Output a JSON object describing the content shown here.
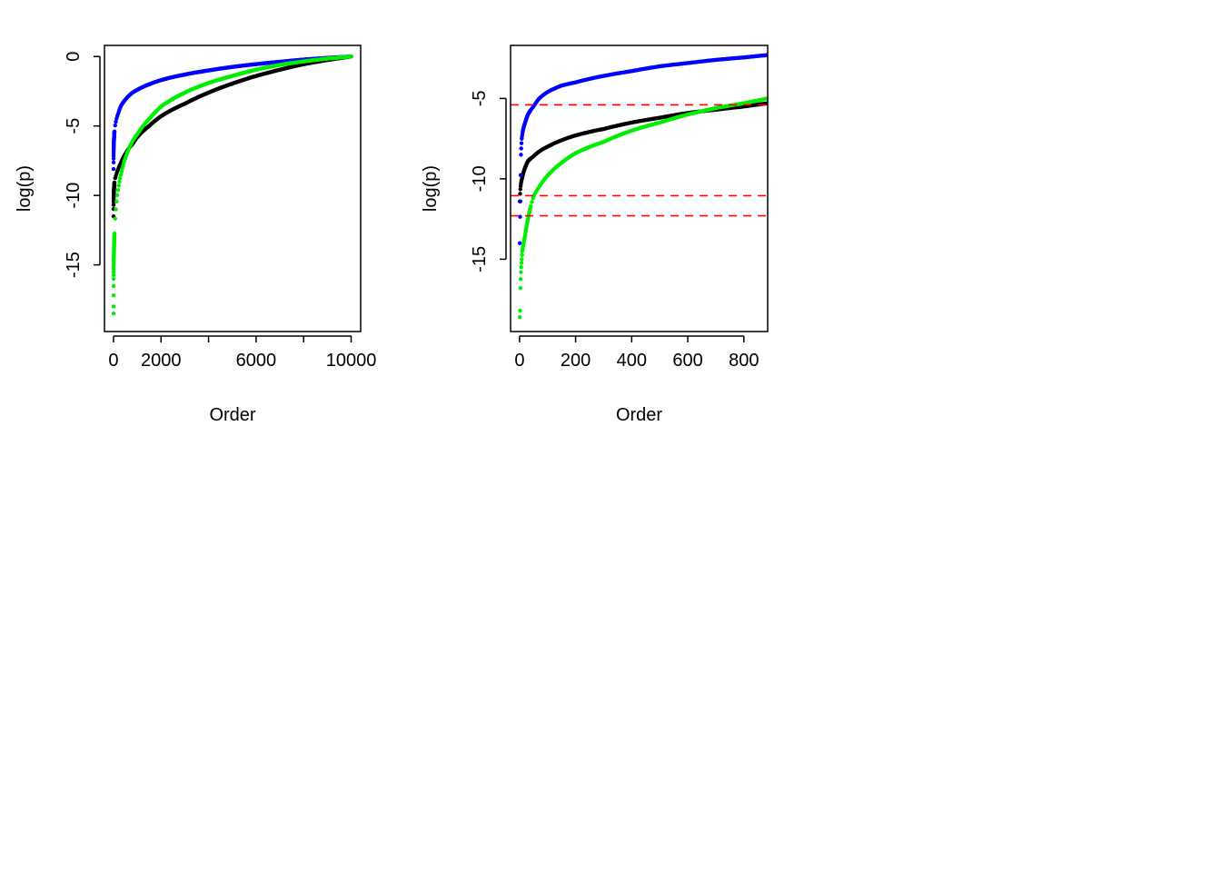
{
  "chart_data": [
    {
      "type": "scatter",
      "xlabel": "Order",
      "ylabel": "log(p)",
      "xlim": [
        -380,
        10400
      ],
      "ylim": [
        -19.8,
        0.8
      ],
      "xticks": [
        0,
        2000,
        4000,
        6000,
        8000,
        10000
      ],
      "xtick_labels": [
        "0",
        "2000",
        "",
        "6000",
        "",
        "10000"
      ],
      "yticks": [
        0,
        -5,
        -10,
        -15
      ],
      "ytick_labels": [
        "0",
        "-5",
        "-10",
        "-15"
      ],
      "grid": false,
      "series": [
        {
          "color": "#000000",
          "x": [
            1,
            5,
            20,
            50,
            100,
            200,
            300,
            500,
            800,
            1000,
            1500,
            2000,
            3000,
            4000,
            5000,
            6000,
            7000,
            8000,
            9000,
            10000
          ],
          "y": [
            -11.5,
            -10.3,
            -9.6,
            -8.9,
            -8.6,
            -8.1,
            -7.7,
            -7.0,
            -6.3,
            -5.8,
            -5.0,
            -4.3,
            -3.4,
            -2.6,
            -1.95,
            -1.4,
            -0.95,
            -0.55,
            -0.25,
            0
          ]
        },
        {
          "color": "#0000ff",
          "x": [
            1,
            5,
            20,
            50,
            100,
            200,
            300,
            500,
            800,
            1000,
            1500,
            2000,
            3000,
            4000,
            5000,
            6000,
            7000,
            8000,
            9000,
            10000
          ],
          "y": [
            -8.1,
            -7.0,
            -6.0,
            -5.2,
            -4.7,
            -4.1,
            -3.6,
            -3.1,
            -2.6,
            -2.4,
            -2.0,
            -1.7,
            -1.3,
            -1.0,
            -0.75,
            -0.55,
            -0.38,
            -0.22,
            -0.1,
            0
          ]
        },
        {
          "color": "#00ee00",
          "x": [
            1,
            2,
            3,
            5,
            10,
            20,
            30,
            50,
            100,
            200,
            300,
            500,
            800,
            1000,
            1500,
            2000,
            3000,
            4000,
            5000,
            6000,
            7000,
            8000,
            9000,
            10000
          ],
          "y": [
            -18.5,
            -18.0,
            -17.2,
            -16.0,
            -15.0,
            -14.0,
            -13.3,
            -12.3,
            -11.0,
            -9.5,
            -8.6,
            -7.3,
            -6.1,
            -5.6,
            -4.5,
            -3.6,
            -2.6,
            -1.9,
            -1.4,
            -0.95,
            -0.6,
            -0.35,
            -0.15,
            0
          ]
        }
      ]
    },
    {
      "type": "scatter",
      "xlabel": "Order",
      "ylabel": "log(p)",
      "xlim": [
        -32,
        885
      ],
      "ylim": [
        -19.5,
        -1.7
      ],
      "xticks": [
        0,
        200,
        400,
        600,
        800
      ],
      "xtick_labels": [
        "0",
        "200",
        "400",
        "600",
        "800"
      ],
      "yticks": [
        -5,
        -10,
        -15
      ],
      "ytick_labels": [
        "-5",
        "-10",
        "-15"
      ],
      "grid": false,
      "hlines": {
        "color": "#ff0000",
        "style": "dashed",
        "y": [
          -5.4,
          -11.05,
          -12.3
        ]
      },
      "series": [
        {
          "color": "#000000",
          "x": [
            1,
            5,
            10,
            20,
            30,
            50,
            70,
            100,
            150,
            200,
            300,
            400,
            500,
            600,
            700,
            800,
            885
          ],
          "y": [
            -11.4,
            -10.3,
            -9.9,
            -9.3,
            -8.9,
            -8.6,
            -8.3,
            -8.0,
            -7.6,
            -7.3,
            -6.9,
            -6.5,
            -6.2,
            -5.9,
            -5.7,
            -5.5,
            -5.3
          ]
        },
        {
          "color": "#0000ff",
          "x": [
            1,
            3,
            5,
            8,
            12,
            20,
            30,
            50,
            70,
            100,
            150,
            200,
            300,
            400,
            500,
            600,
            700,
            800,
            885
          ],
          "y": [
            -14.0,
            -11.4,
            -8.5,
            -7.5,
            -7.0,
            -6.5,
            -6.0,
            -5.5,
            -5.0,
            -4.6,
            -4.2,
            -4.0,
            -3.6,
            -3.3,
            -3.0,
            -2.8,
            -2.6,
            -2.45,
            -2.3
          ]
        },
        {
          "color": "#00ee00",
          "x": [
            1,
            2,
            3,
            5,
            8,
            10,
            15,
            20,
            30,
            40,
            50,
            70,
            100,
            150,
            200,
            300,
            400,
            500,
            600,
            700,
            800,
            885
          ],
          "y": [
            -18.6,
            -18.2,
            -16.8,
            -15.8,
            -15.0,
            -14.5,
            -14.0,
            -13.5,
            -12.5,
            -11.7,
            -11.1,
            -10.5,
            -9.8,
            -9.0,
            -8.4,
            -7.7,
            -7.0,
            -6.5,
            -6.0,
            -5.6,
            -5.3,
            -5.0
          ]
        }
      ]
    }
  ]
}
